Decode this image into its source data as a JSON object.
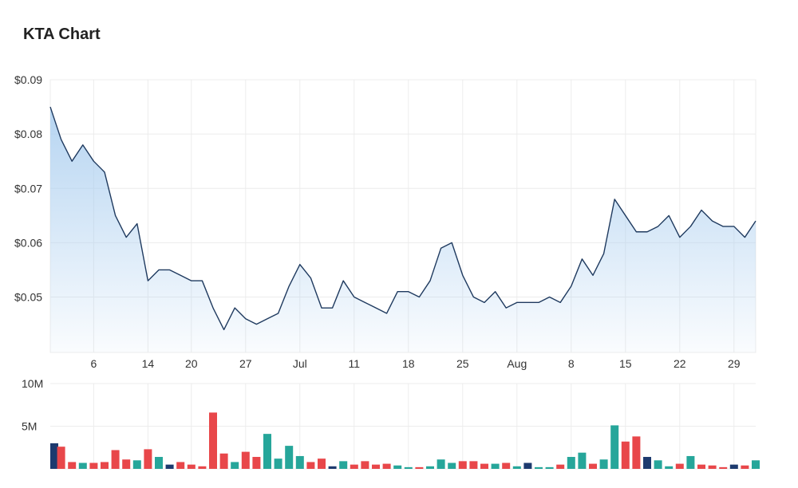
{
  "title": "KTA Chart",
  "chart_data": [
    {
      "type": "area",
      "ylim": [
        0.0398,
        0.09
      ],
      "y_ticks": [
        0.05,
        0.06,
        0.07,
        0.08,
        0.09
      ],
      "y_tick_labels": [
        "$0.05",
        "$0.06",
        "$0.07",
        "$0.08",
        "$0.09"
      ],
      "x_tick_positions": [
        4,
        9,
        13,
        18,
        23,
        28,
        33,
        38,
        43,
        48,
        53,
        58,
        63
      ],
      "x_tick_labels": [
        "6",
        "14",
        "20",
        "27",
        "Jul",
        "11",
        "18",
        "25",
        "Aug",
        "8",
        "15",
        "22",
        "29"
      ],
      "x_count": 66,
      "values": [
        0.085,
        0.079,
        0.075,
        0.078,
        0.075,
        0.073,
        0.065,
        0.061,
        0.0635,
        0.053,
        0.055,
        0.055,
        0.054,
        0.053,
        0.053,
        0.048,
        0.044,
        0.048,
        0.046,
        0.045,
        0.046,
        0.047,
        0.052,
        0.056,
        0.0535,
        0.048,
        0.048,
        0.053,
        0.05,
        0.049,
        0.048,
        0.047,
        0.051,
        0.051,
        0.05,
        0.053,
        0.059,
        0.06,
        0.054,
        0.05,
        0.049,
        0.051,
        0.048,
        0.049,
        0.049,
        0.049,
        0.05,
        0.049,
        0.052,
        0.057,
        0.054,
        0.058,
        0.068,
        0.065,
        0.062,
        0.062,
        0.063,
        0.065,
        0.061,
        0.063,
        0.066,
        0.064,
        0.063,
        0.063,
        0.061,
        0.064
      ],
      "line_color": "#1f3a5f",
      "fill_color": "#a9cdef",
      "grid": true
    },
    {
      "type": "bar",
      "ylim": [
        0,
        10
      ],
      "y_ticks": [
        5,
        10
      ],
      "y_tick_labels": [
        "5M",
        "10M"
      ],
      "unit": "M",
      "values": [
        3.0,
        2.6,
        0.8,
        0.7,
        0.7,
        0.8,
        2.2,
        1.1,
        1.0,
        2.3,
        1.4,
        0.5,
        0.8,
        0.5,
        0.3,
        6.6,
        1.8,
        0.8,
        2.0,
        1.4,
        4.1,
        1.2,
        2.7,
        1.5,
        0.8,
        1.2,
        0.3,
        0.9,
        0.5,
        0.9,
        0.5,
        0.6,
        0.4,
        0.2,
        0.2,
        0.3,
        1.1,
        0.7,
        0.9,
        0.9,
        0.6,
        0.6,
        0.7,
        0.3,
        0.7,
        0.2,
        0.2,
        0.5,
        1.4,
        1.9,
        0.6,
        1.1,
        5.1,
        3.2,
        3.8,
        1.4,
        1.0,
        0.3,
        0.6,
        1.5,
        0.5,
        0.4,
        0.2,
        0.5,
        0.4,
        1.0
      ],
      "colors": [
        "#1d3a6e",
        "#e8474a",
        "#e8474a",
        "#26a69a",
        "#e8474a",
        "#e8474a",
        "#e8474a",
        "#e8474a",
        "#26a69a",
        "#e8474a",
        "#26a69a",
        "#1d3a6e",
        "#e8474a",
        "#e8474a",
        "#e8474a",
        "#e8474a",
        "#e8474a",
        "#26a69a",
        "#e8474a",
        "#e8474a",
        "#26a69a",
        "#26a69a",
        "#26a69a",
        "#26a69a",
        "#e8474a",
        "#e8474a",
        "#1d3a6e",
        "#26a69a",
        "#e8474a",
        "#e8474a",
        "#e8474a",
        "#e8474a",
        "#26a69a",
        "#26a69a",
        "#e8474a",
        "#26a69a",
        "#26a69a",
        "#26a69a",
        "#e8474a",
        "#e8474a",
        "#e8474a",
        "#26a69a",
        "#e8474a",
        "#26a69a",
        "#1d3a6e",
        "#26a69a",
        "#26a69a",
        "#e8474a",
        "#26a69a",
        "#26a69a",
        "#e8474a",
        "#26a69a",
        "#26a69a",
        "#e8474a",
        "#e8474a",
        "#1d3a6e",
        "#26a69a",
        "#26a69a",
        "#e8474a",
        "#26a69a",
        "#e8474a",
        "#e8474a",
        "#e8474a",
        "#1d3a6e",
        "#e8474a",
        "#26a69a"
      ],
      "grid": true
    }
  ]
}
